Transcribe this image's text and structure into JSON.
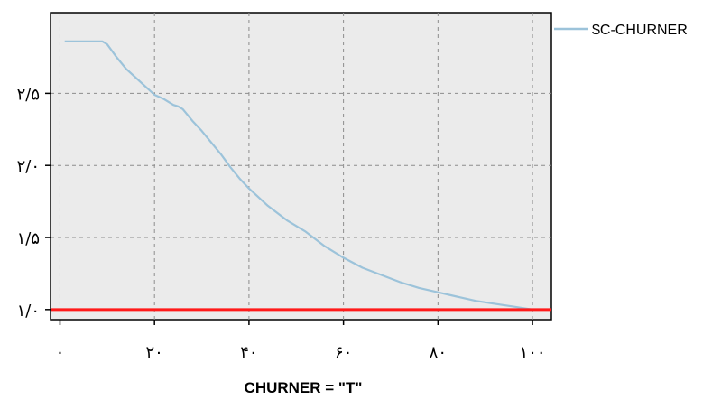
{
  "chart_data": {
    "type": "line",
    "xlabel": "CHURNER = \"T\"",
    "ylabel": "",
    "xlim": [
      -2,
      104
    ],
    "ylim": [
      0.93,
      3.06
    ],
    "grid": true,
    "legend_position": "top-right",
    "x_ticks": [
      0,
      20,
      40,
      60,
      80,
      100
    ],
    "x_tick_labels": [
      "۰",
      "۲۰",
      "۴۰",
      "۶۰",
      "۸۰",
      "۱۰۰"
    ],
    "y_ticks": [
      1.0,
      1.5,
      2.0,
      2.5
    ],
    "y_tick_labels": [
      "۱/۰",
      "۱/۵",
      "۲/۰",
      "۲/۵"
    ],
    "reference_line": {
      "y": 1.0,
      "color": "#ff1a1a"
    },
    "series": [
      {
        "name": "$C-CHURNER",
        "color": "#9cc3da",
        "x": [
          1,
          4,
          6,
          8,
          9,
          10,
          12,
          14,
          16,
          18,
          20,
          22,
          24,
          25,
          26,
          28,
          30,
          32,
          34,
          36,
          38,
          40,
          44,
          48,
          52,
          56,
          60,
          64,
          68,
          72,
          76,
          80,
          84,
          88,
          92,
          96,
          100
        ],
        "y": [
          2.86,
          2.86,
          2.86,
          2.86,
          2.86,
          2.84,
          2.75,
          2.67,
          2.61,
          2.55,
          2.49,
          2.46,
          2.42,
          2.41,
          2.39,
          2.31,
          2.24,
          2.16,
          2.08,
          1.99,
          1.91,
          1.84,
          1.72,
          1.62,
          1.54,
          1.44,
          1.36,
          1.29,
          1.24,
          1.19,
          1.15,
          1.12,
          1.09,
          1.06,
          1.04,
          1.02,
          1.0
        ]
      }
    ]
  }
}
